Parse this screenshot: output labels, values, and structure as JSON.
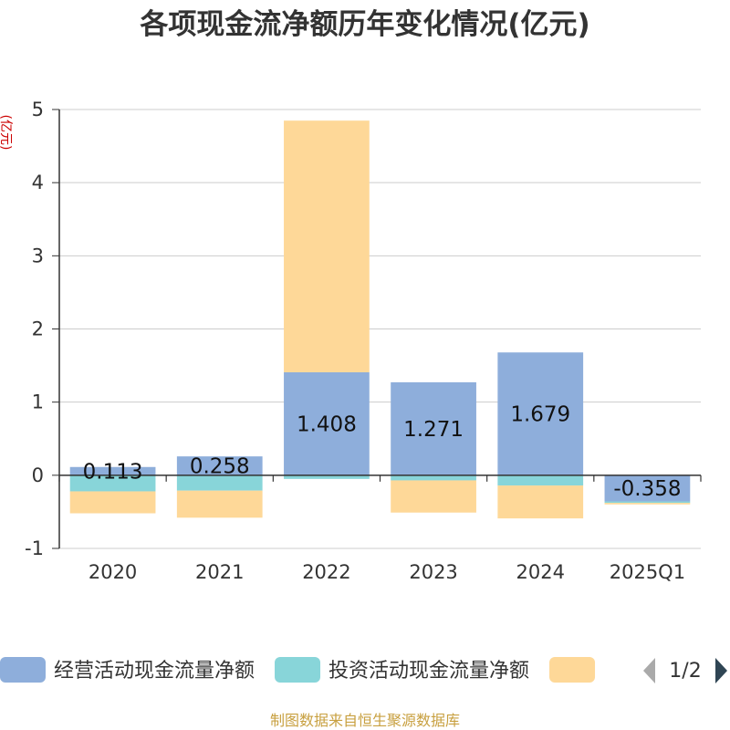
{
  "chart_data": {
    "type": "bar",
    "stacked": true,
    "title": "各项现金流净额历年变化情况(亿元)",
    "ylabel": "(亿元)",
    "ylim": [
      -1,
      5
    ],
    "yticks": [
      -1,
      0,
      1,
      2,
      3,
      4,
      5
    ],
    "categories": [
      "2020",
      "2021",
      "2022",
      "2023",
      "2024",
      "2025Q1"
    ],
    "series": [
      {
        "name": "经营活动现金流量净额",
        "color": "#8eaedb",
        "values": [
          0.113,
          0.258,
          1.408,
          1.271,
          1.679,
          -0.358
        ]
      },
      {
        "name": "投资活动现金流量净额",
        "color": "#88d5d9",
        "values": [
          -0.22,
          -0.21,
          -0.05,
          -0.07,
          -0.14,
          -0.02
        ]
      },
      {
        "name": "",
        "color": "#fed898",
        "values": [
          -0.3,
          -0.37,
          3.44,
          -0.44,
          -0.45,
          -0.02
        ]
      }
    ],
    "data_labels": [
      "0.113",
      "0.258",
      "1.408",
      "1.271",
      "1.679",
      "-0.358"
    ],
    "grid": true,
    "legend": {
      "placement": "bottom",
      "page": "1/2"
    }
  },
  "source": "制图数据来自恒生聚源数据库",
  "colors": {
    "axis": "#333333",
    "grid": "#cccccc",
    "ylabel": "#cc0000",
    "source": "#c8a040",
    "arrow_disabled": "#aaaaaa",
    "arrow_active": "#2f4554"
  }
}
